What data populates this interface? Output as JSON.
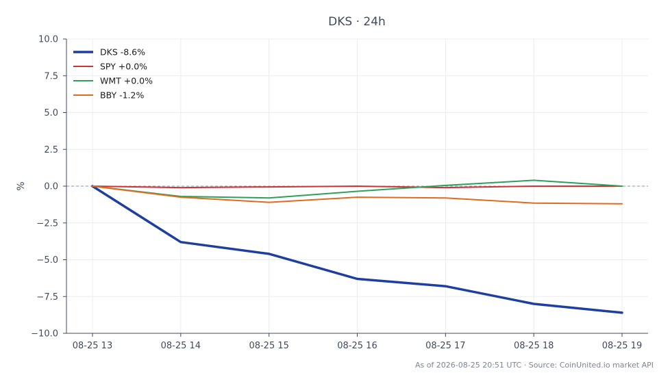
{
  "chart_data": {
    "type": "line",
    "title": "DKS · 24h",
    "xlabel": "",
    "ylabel": "%",
    "categories": [
      "08-25 13",
      "08-25 14",
      "08-25 15",
      "08-25 16",
      "08-25 17",
      "08-25 18",
      "08-25 19"
    ],
    "ylim": [
      -10.0,
      10.0
    ],
    "yticks": [
      "10.0",
      "7.5",
      "5.0",
      "2.5",
      "0.0",
      "−2.5",
      "−5.0",
      "−7.5",
      "−10.0"
    ],
    "ytick_values": [
      10.0,
      7.5,
      5.0,
      2.5,
      0.0,
      -2.5,
      -5.0,
      -7.5,
      -10.0
    ],
    "grid": true,
    "reference_line": 0,
    "legend_position": "top-left",
    "series": [
      {
        "name": "DKS -8.6%",
        "color": "#1f3fa0",
        "emphasis": true,
        "values": [
          0.0,
          -3.8,
          -4.6,
          -6.3,
          -6.8,
          -8.0,
          -8.6
        ]
      },
      {
        "name": "SPY +0.0%",
        "color": "#cc3333",
        "emphasis": false,
        "values": [
          0.0,
          -0.1,
          -0.05,
          0.0,
          -0.1,
          0.0,
          0.0
        ]
      },
      {
        "name": "WMT +0.0%",
        "color": "#2ca05a",
        "emphasis": false,
        "values": [
          0.0,
          -0.7,
          -0.8,
          -0.35,
          0.05,
          0.4,
          0.0
        ]
      },
      {
        "name": "BBY -1.2%",
        "color": "#e06a1f",
        "emphasis": false,
        "values": [
          0.0,
          -0.75,
          -1.1,
          -0.75,
          -0.8,
          -1.15,
          -1.2
        ]
      }
    ]
  },
  "footer": "As of 2026-08-25 20:51 UTC · Source: CoinUnited.io market API"
}
